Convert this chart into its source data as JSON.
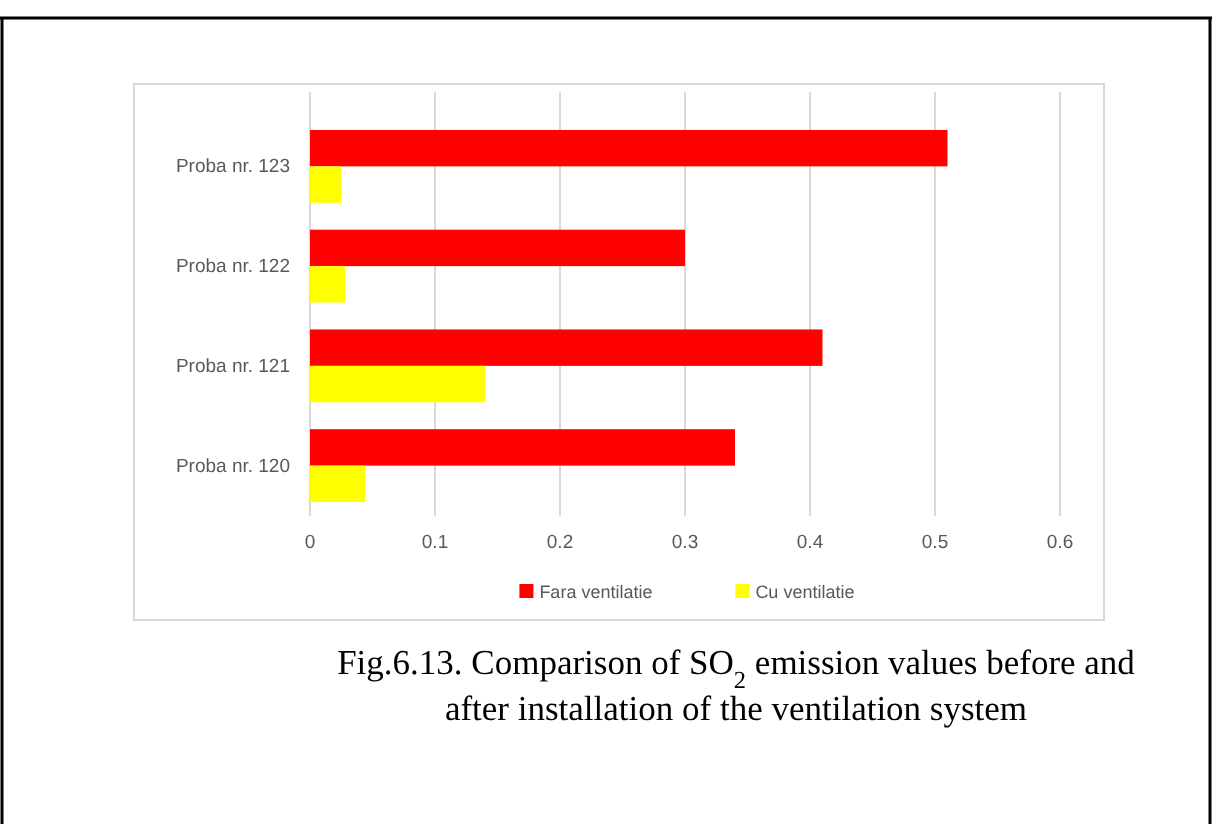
{
  "chart_data": {
    "type": "bar",
    "orientation": "horizontal",
    "categories": [
      "Proba nr. 123",
      "Proba nr. 122",
      "Proba nr. 121",
      "Proba nr. 120"
    ],
    "series": [
      {
        "name": "Fara ventilatie",
        "color": "#ff0000",
        "values": [
          0.51,
          0.3,
          0.41,
          0.34
        ]
      },
      {
        "name": "Cu ventilatie",
        "color": "#ffff00",
        "values": [
          0.025,
          0.028,
          0.14,
          0.044
        ]
      }
    ],
    "xlim": [
      0,
      0.6
    ],
    "xticks": [
      0,
      0.1,
      0.2,
      0.3,
      0.4,
      0.5,
      0.6
    ],
    "grid": "x",
    "legend": "bottom",
    "annotations": [
      "Fig.6.13. Comparison of SO$_{2}$ emission values before and after installation of the ventilation system"
    ]
  }
}
